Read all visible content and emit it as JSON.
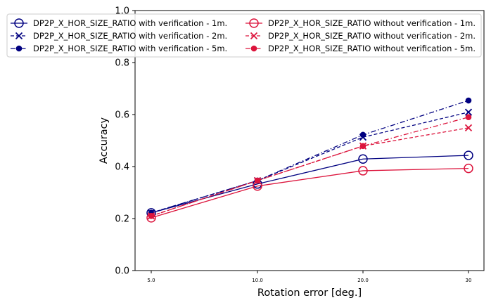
{
  "chart_data": {
    "type": "line",
    "title": "",
    "xlabel": "Rotation error [deg.]",
    "ylabel": "Accuracy",
    "categories": [
      "5.0",
      "10.0",
      "20.0",
      "30"
    ],
    "ylim": [
      0.0,
      1.0
    ],
    "yticks": [
      "0.0",
      "0.2",
      "0.4",
      "0.6",
      "0.8",
      "1.0"
    ],
    "grid": false,
    "legend_placement": "top",
    "series": [
      {
        "name": "DP2P_X_HOR_SIZE_RATIO with verification - 1m.",
        "values": [
          0.222,
          0.333,
          0.429,
          0.443
        ],
        "color": "#000080",
        "marker": "open-circle",
        "linestyle": "solid"
      },
      {
        "name": "DP2P_X_HOR_SIZE_RATIO with verification - 2m.",
        "values": [
          0.222,
          0.346,
          0.513,
          0.609
        ],
        "color": "#000080",
        "marker": "x",
        "linestyle": "dashed"
      },
      {
        "name": "DP2P_X_HOR_SIZE_RATIO with verification - 5m.",
        "values": [
          0.222,
          0.346,
          0.522,
          0.654
        ],
        "color": "#000080",
        "marker": "filled-circle",
        "linestyle": "dashdot"
      },
      {
        "name": "DP2P_X_HOR_SIZE_RATIO without verification - 1m.",
        "values": [
          0.203,
          0.325,
          0.384,
          0.393
        ],
        "color": "#dc143c",
        "marker": "open-circle",
        "linestyle": "solid"
      },
      {
        "name": "DP2P_X_HOR_SIZE_RATIO without verification - 2m.",
        "values": [
          0.21,
          0.346,
          0.479,
          0.549
        ],
        "color": "#dc143c",
        "marker": "x",
        "linestyle": "dashed"
      },
      {
        "name": "DP2P_X_HOR_SIZE_RATIO without verification - 5m.",
        "values": [
          0.21,
          0.346,
          0.479,
          0.59
        ],
        "color": "#dc143c",
        "marker": "filled-circle",
        "linestyle": "dashdot"
      }
    ]
  }
}
